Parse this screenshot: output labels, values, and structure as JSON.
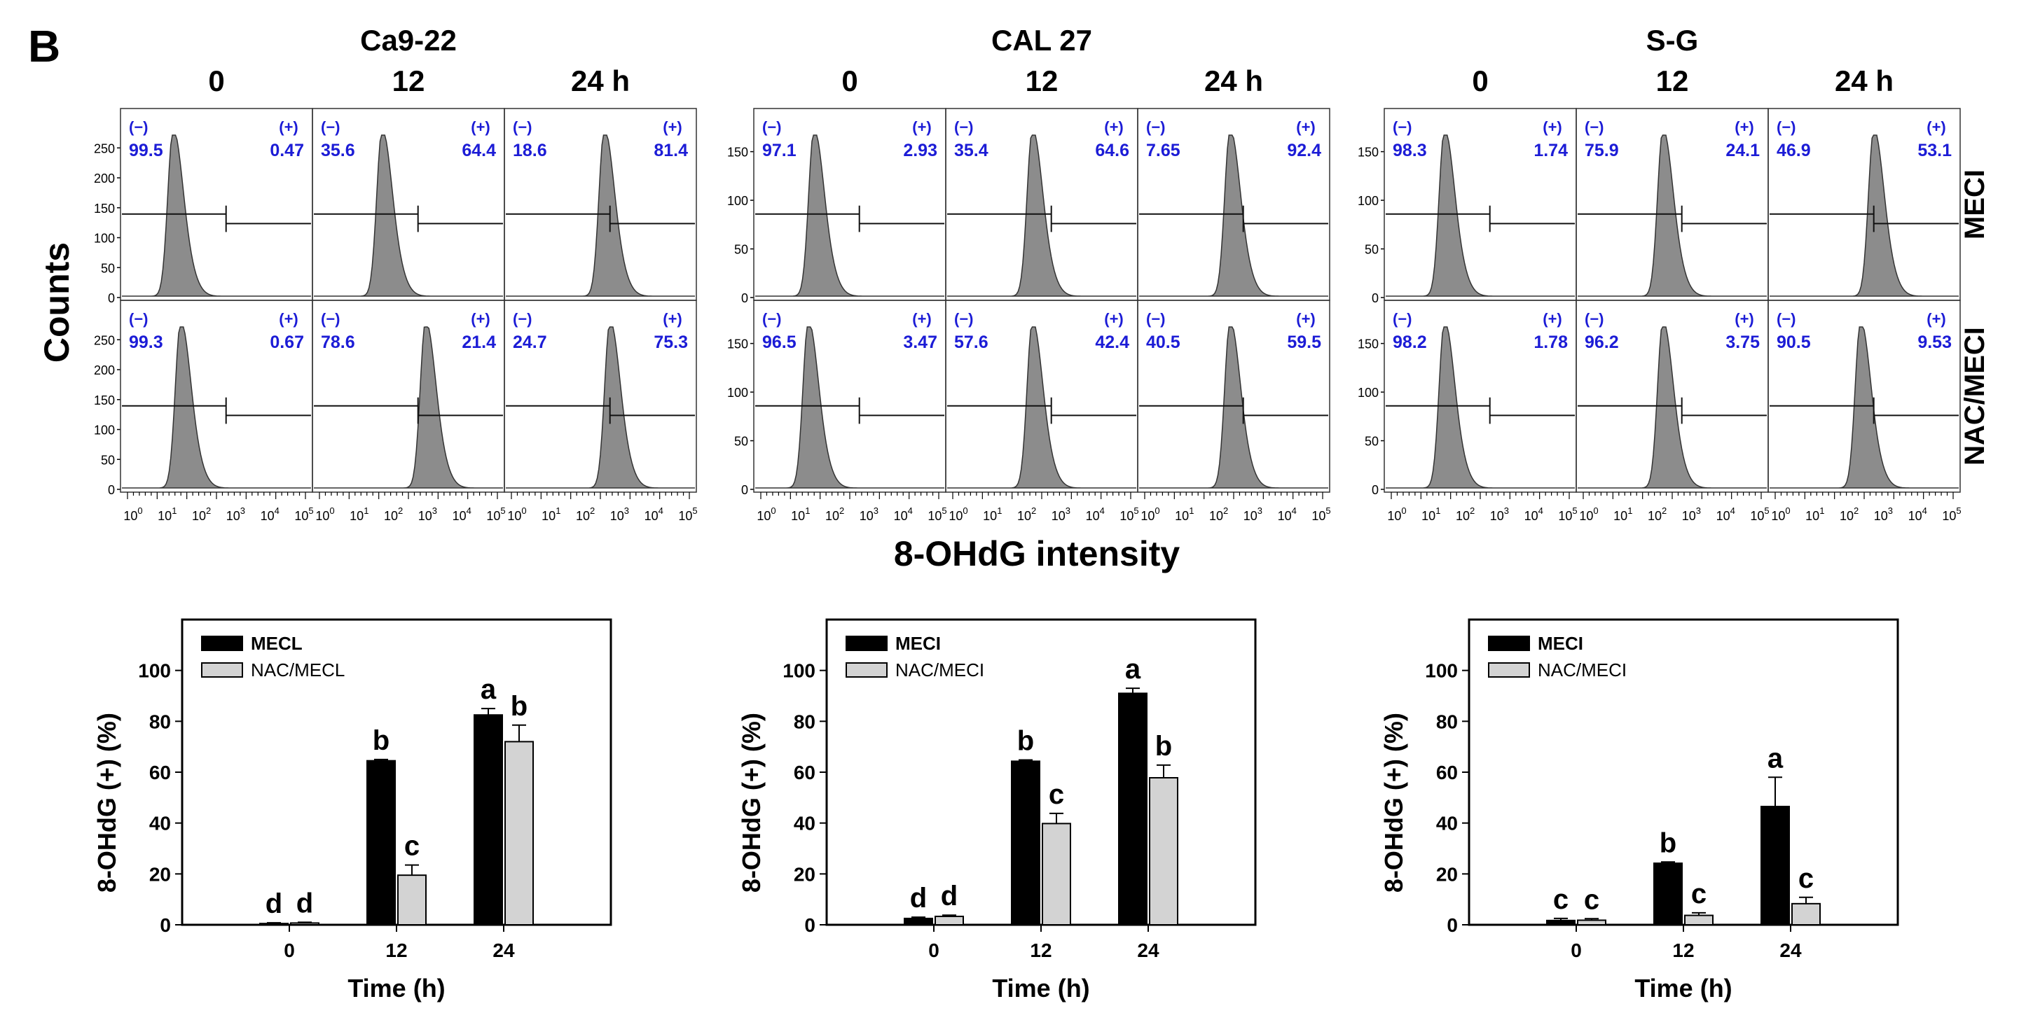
{
  "panel_label": "B",
  "flow": {
    "y_axis_label": "Counts",
    "x_axis_label": "8-OHdG intensity",
    "row_labels": [
      "MECI",
      "NAC/MECI"
    ],
    "neg_label": "(−)",
    "pos_label": "(+)",
    "cell_lines": [
      {
        "name": "Ca9-22",
        "time_labels": [
          "0",
          "12",
          "24 h"
        ],
        "y_ticks": [
          "250",
          "200",
          "150",
          "100",
          "50",
          "0"
        ],
        "rows": [
          {
            "neg": [
              "99.5",
              "35.6",
              "18.6"
            ],
            "pos": [
              "0.47",
              "64.4",
              "81.4"
            ]
          },
          {
            "neg": [
              "99.3",
              "78.6",
              "24.7"
            ],
            "pos": [
              "0.67",
              "21.4",
              "75.3"
            ]
          }
        ]
      },
      {
        "name": "CAL 27",
        "time_labels": [
          "0",
          "12",
          "24 h"
        ],
        "y_ticks": [
          "150",
          "100",
          "50",
          "0"
        ],
        "rows": [
          {
            "neg": [
              "97.1",
              "35.4",
              "7.65"
            ],
            "pos": [
              "2.93",
              "64.6",
              "92.4"
            ]
          },
          {
            "neg": [
              "96.5",
              "57.6",
              "40.5"
            ],
            "pos": [
              "3.47",
              "42.4",
              "59.5"
            ]
          }
        ]
      },
      {
        "name": "S-G",
        "time_labels": [
          "0",
          "12",
          "24 h"
        ],
        "y_ticks": [
          "150",
          "100",
          "50",
          "0"
        ],
        "rows": [
          {
            "neg": [
              "98.3",
              "75.9",
              "46.9"
            ],
            "pos": [
              "1.74",
              "24.1",
              "53.1"
            ]
          },
          {
            "neg": [
              "98.2",
              "96.2",
              "90.5"
            ],
            "pos": [
              "1.78",
              "3.75",
              "9.53"
            ]
          }
        ]
      }
    ],
    "x_tick_exponents": [
      "0",
      "1",
      "2",
      "3",
      "4",
      "5"
    ]
  },
  "chart_data": [
    {
      "type": "bar",
      "title": "Ca9-22",
      "categories": [
        "0",
        "12",
        "24"
      ],
      "xlabel": "Time (h)",
      "ylabel": "8-OHdG (+) (%)",
      "ylim": [
        0,
        120
      ],
      "yticks": [
        0,
        20,
        40,
        60,
        80,
        100
      ],
      "series": [
        {
          "name": "MECL",
          "color": "#000000",
          "values": [
            0.5,
            64.5,
            82.5
          ],
          "errors": [
            0.3,
            0.5,
            2.5
          ],
          "letters": [
            "d",
            "b",
            "a"
          ]
        },
        {
          "name": "NAC/MECL",
          "color": "#d3d3d3",
          "values": [
            0.7,
            19.5,
            72.0
          ],
          "errors": [
            0.3,
            4.0,
            6.5
          ],
          "letters": [
            "d",
            "c",
            "b"
          ]
        }
      ]
    },
    {
      "type": "bar",
      "title": "CAL 27",
      "categories": [
        "0",
        "12",
        "24"
      ],
      "xlabel": "Time (h)",
      "ylabel": "8-OHdG (+) (%)",
      "ylim": [
        0,
        120
      ],
      "yticks": [
        0,
        20,
        40,
        60,
        80,
        100
      ],
      "series": [
        {
          "name": "MECI",
          "color": "#000000",
          "values": [
            2.5,
            64.3,
            91.0
          ],
          "errors": [
            0.5,
            0.5,
            2.0
          ],
          "letters": [
            "d",
            "b",
            "a"
          ]
        },
        {
          "name": "NAC/MECI",
          "color": "#d3d3d3",
          "values": [
            3.3,
            39.8,
            57.8
          ],
          "errors": [
            0.5,
            4.0,
            5.0
          ],
          "letters": [
            "d",
            "c",
            "b"
          ]
        }
      ]
    },
    {
      "type": "bar",
      "title": "S-G",
      "categories": [
        "0",
        "12",
        "24"
      ],
      "xlabel": "Time (h)",
      "ylabel": "8-OHdG (+) (%)",
      "ylim": [
        0,
        120
      ],
      "yticks": [
        0,
        20,
        40,
        60,
        80,
        100
      ],
      "series": [
        {
          "name": "MECI",
          "color": "#000000",
          "values": [
            1.7,
            24.2,
            46.5
          ],
          "errors": [
            0.8,
            0.5,
            11.5
          ],
          "letters": [
            "c",
            "b",
            "a"
          ]
        },
        {
          "name": "NAC/MECI",
          "color": "#d3d3d3",
          "values": [
            1.8,
            3.7,
            8.3
          ],
          "errors": [
            0.6,
            1.0,
            2.5
          ],
          "letters": [
            "c",
            "c",
            "c"
          ]
        }
      ]
    }
  ]
}
